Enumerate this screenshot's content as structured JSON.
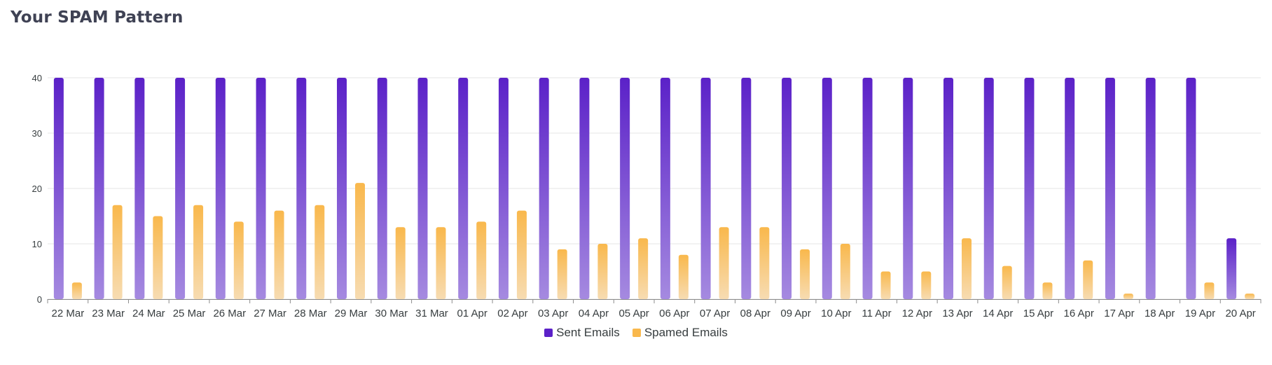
{
  "title": "Your SPAM Pattern",
  "colors": {
    "sent": "#5b21c8",
    "sent_light": "#a58ae0",
    "spam": "#f9b84c",
    "spam_light": "#f7dcb2",
    "grid": "#e6e6e6",
    "axis": "#8c8c8c"
  },
  "legend": {
    "sent_label": "Sent Emails",
    "spam_label": "Spamed Emails"
  },
  "chart_data": {
    "type": "bar",
    "title": "Your SPAM Pattern",
    "xlabel": "",
    "ylabel": "",
    "ylim": [
      0,
      40
    ],
    "yticks": [
      0,
      10,
      20,
      30,
      40
    ],
    "grid": true,
    "legend_position": "bottom",
    "categories": [
      "22 Mar",
      "23 Mar",
      "24 Mar",
      "25 Mar",
      "26 Mar",
      "27 Mar",
      "28 Mar",
      "29 Mar",
      "30 Mar",
      "31 Mar",
      "01 Apr",
      "02 Apr",
      "03 Apr",
      "04 Apr",
      "05 Apr",
      "06 Apr",
      "07 Apr",
      "08 Apr",
      "09 Apr",
      "10 Apr",
      "11 Apr",
      "12 Apr",
      "13 Apr",
      "14 Apr",
      "15 Apr",
      "16 Apr",
      "17 Apr",
      "18 Apr",
      "19 Apr",
      "20 Apr"
    ],
    "series": [
      {
        "name": "Sent Emails",
        "values": [
          40,
          40,
          40,
          40,
          40,
          40,
          40,
          40,
          40,
          40,
          40,
          40,
          40,
          40,
          40,
          40,
          40,
          40,
          40,
          40,
          40,
          40,
          40,
          40,
          40,
          40,
          40,
          40,
          40,
          11
        ]
      },
      {
        "name": "Spamed Emails",
        "values": [
          3,
          17,
          15,
          17,
          14,
          16,
          17,
          21,
          13,
          13,
          14,
          16,
          9,
          10,
          11,
          8,
          13,
          13,
          9,
          10,
          5,
          5,
          11,
          6,
          3,
          7,
          1,
          0,
          3,
          1
        ]
      }
    ]
  }
}
